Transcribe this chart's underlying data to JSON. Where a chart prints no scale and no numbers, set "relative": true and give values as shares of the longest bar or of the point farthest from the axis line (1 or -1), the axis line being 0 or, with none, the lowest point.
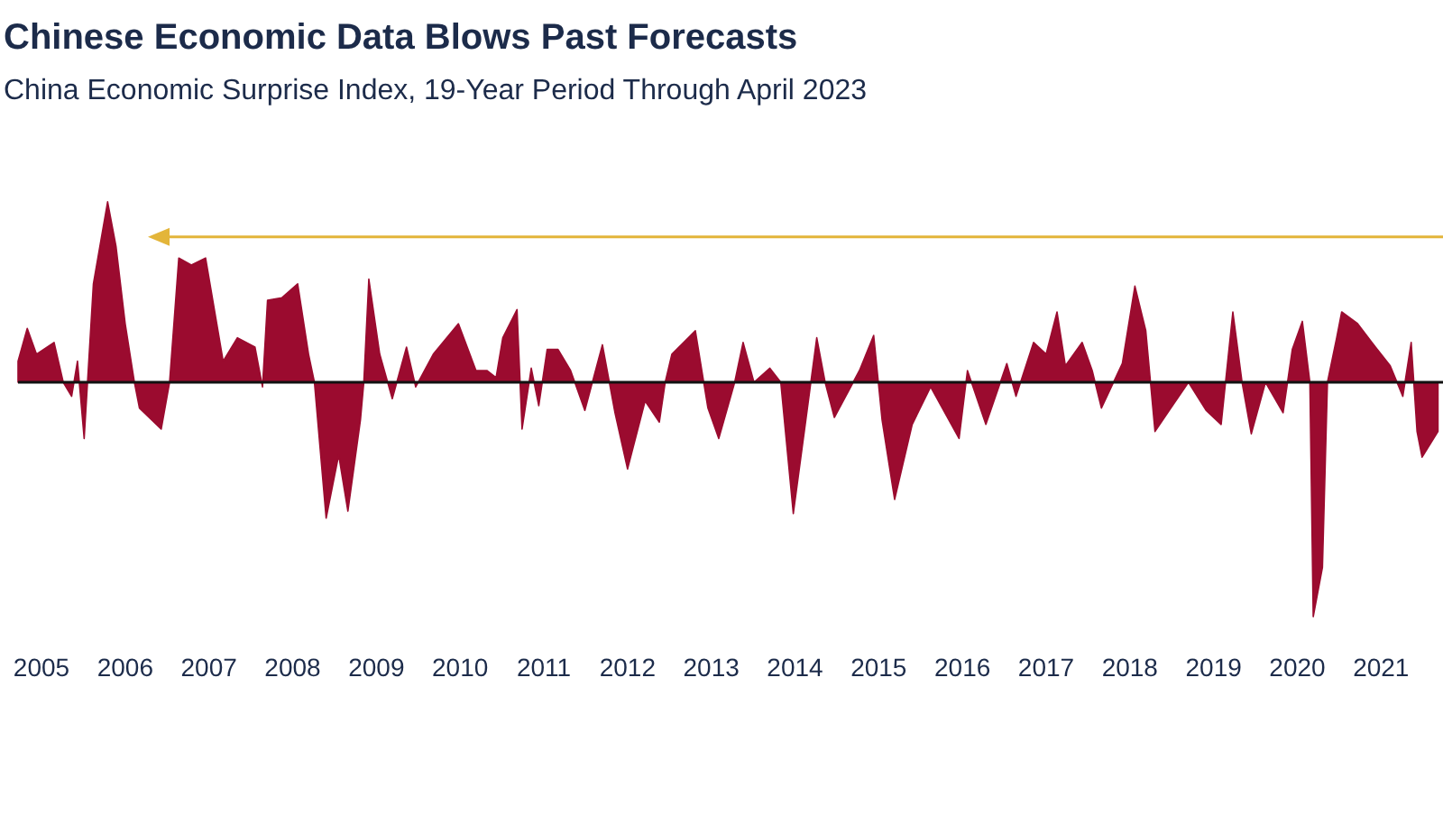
{
  "chart_data": {
    "type": "area",
    "title": "Chinese Economic Data Blows Past Forecasts",
    "subtitle": "China Economic Surprise Index, 19-Year Period Through April 2023",
    "relative": true,
    "ref_lines": [
      {
        "axis": "y",
        "value": 0.62,
        "color": "#e3b53a"
      }
    ],
    "xlim": [
      2004.72,
      2021.74
    ],
    "xticks": [
      2005,
      2006,
      2007,
      2008,
      2009,
      2010,
      2011,
      2012,
      2013,
      2014,
      2015,
      2016,
      2017,
      2018,
      2019,
      2020,
      2021
    ],
    "x": [
      2004.72,
      2004.83,
      2004.94,
      2005.15,
      2005.26,
      2005.36,
      2005.43,
      2005.51,
      2005.62,
      2005.79,
      2005.89,
      2006.0,
      2006.11,
      2006.17,
      2006.43,
      2006.53,
      2006.64,
      2006.79,
      2006.96,
      2007.17,
      2007.34,
      2007.55,
      2007.64,
      2007.7,
      2007.87,
      2008.06,
      2008.19,
      2008.26,
      2008.4,
      2008.55,
      2008.66,
      2008.81,
      2008.85,
      2008.91,
      2009.04,
      2009.19,
      2009.36,
      2009.47,
      2009.68,
      2009.98,
      2010.19,
      2010.32,
      2010.43,
      2010.51,
      2010.68,
      2010.74,
      2010.85,
      2010.94,
      2011.04,
      2011.17,
      2011.32,
      2011.49,
      2011.7,
      2011.85,
      2012.0,
      2012.21,
      2012.38,
      2012.45,
      2012.53,
      2012.81,
      2012.96,
      2013.09,
      2013.28,
      2013.38,
      2013.51,
      2013.7,
      2013.83,
      2013.98,
      2014.13,
      2014.26,
      2014.36,
      2014.47,
      2014.77,
      2014.94,
      2015.04,
      2015.19,
      2015.4,
      2015.62,
      2015.96,
      2016.06,
      2016.28,
      2016.53,
      2016.64,
      2016.85,
      2017.0,
      2017.13,
      2017.23,
      2017.43,
      2017.55,
      2017.66,
      2017.91,
      2018.06,
      2018.19,
      2018.3,
      2018.49,
      2018.7,
      2018.91,
      2019.09,
      2019.23,
      2019.34,
      2019.45,
      2019.62,
      2019.83,
      2019.94,
      2020.06,
      2020.15,
      2020.19,
      2020.3,
      2020.36,
      2020.47,
      2020.53,
      2020.72,
      2020.89,
      2021.11,
      2021.26,
      2021.36,
      2021.43,
      2021.49,
      2021.68
    ],
    "series": [
      {
        "color": "#9b0b2f",
        "values": [
          0.09,
          0.23,
          0.12,
          0.17,
          0,
          -0.06,
          0.09,
          -0.24,
          0.42,
          0.77,
          0.58,
          0.25,
          0,
          -0.11,
          -0.2,
          0,
          0.53,
          0.5,
          0.53,
          0.09,
          0.19,
          0.15,
          -0.02,
          0.35,
          0.36,
          0.42,
          0.12,
          0,
          -0.58,
          -0.31,
          -0.55,
          -0.16,
          0,
          0.44,
          0.12,
          -0.07,
          0.15,
          -0.02,
          0.12,
          0.25,
          0.05,
          0.05,
          0.02,
          0.19,
          0.31,
          -0.2,
          0.06,
          -0.1,
          0.14,
          0.14,
          0.05,
          -0.12,
          0.16,
          -0.13,
          -0.37,
          -0.08,
          -0.17,
          0,
          0.12,
          0.22,
          -0.11,
          -0.24,
          0,
          0.17,
          0,
          0.06,
          0,
          -0.56,
          -0.16,
          0.19,
          0,
          -0.15,
          0.05,
          0.2,
          -0.16,
          -0.5,
          -0.18,
          -0.02,
          -0.24,
          0.05,
          -0.18,
          0.08,
          -0.06,
          0.17,
          0.12,
          0.3,
          0.07,
          0.17,
          0.05,
          -0.11,
          0.08,
          0.41,
          0.22,
          -0.21,
          -0.11,
          0,
          -0.12,
          -0.18,
          0.3,
          0,
          -0.22,
          0,
          -0.13,
          0.14,
          0.26,
          0,
          -1,
          -0.79,
          0,
          0.19,
          0.3,
          0.25,
          0.17,
          0.07,
          -0.06,
          0.17,
          -0.21,
          -0.32,
          -0.21
        ]
      }
    ]
  }
}
